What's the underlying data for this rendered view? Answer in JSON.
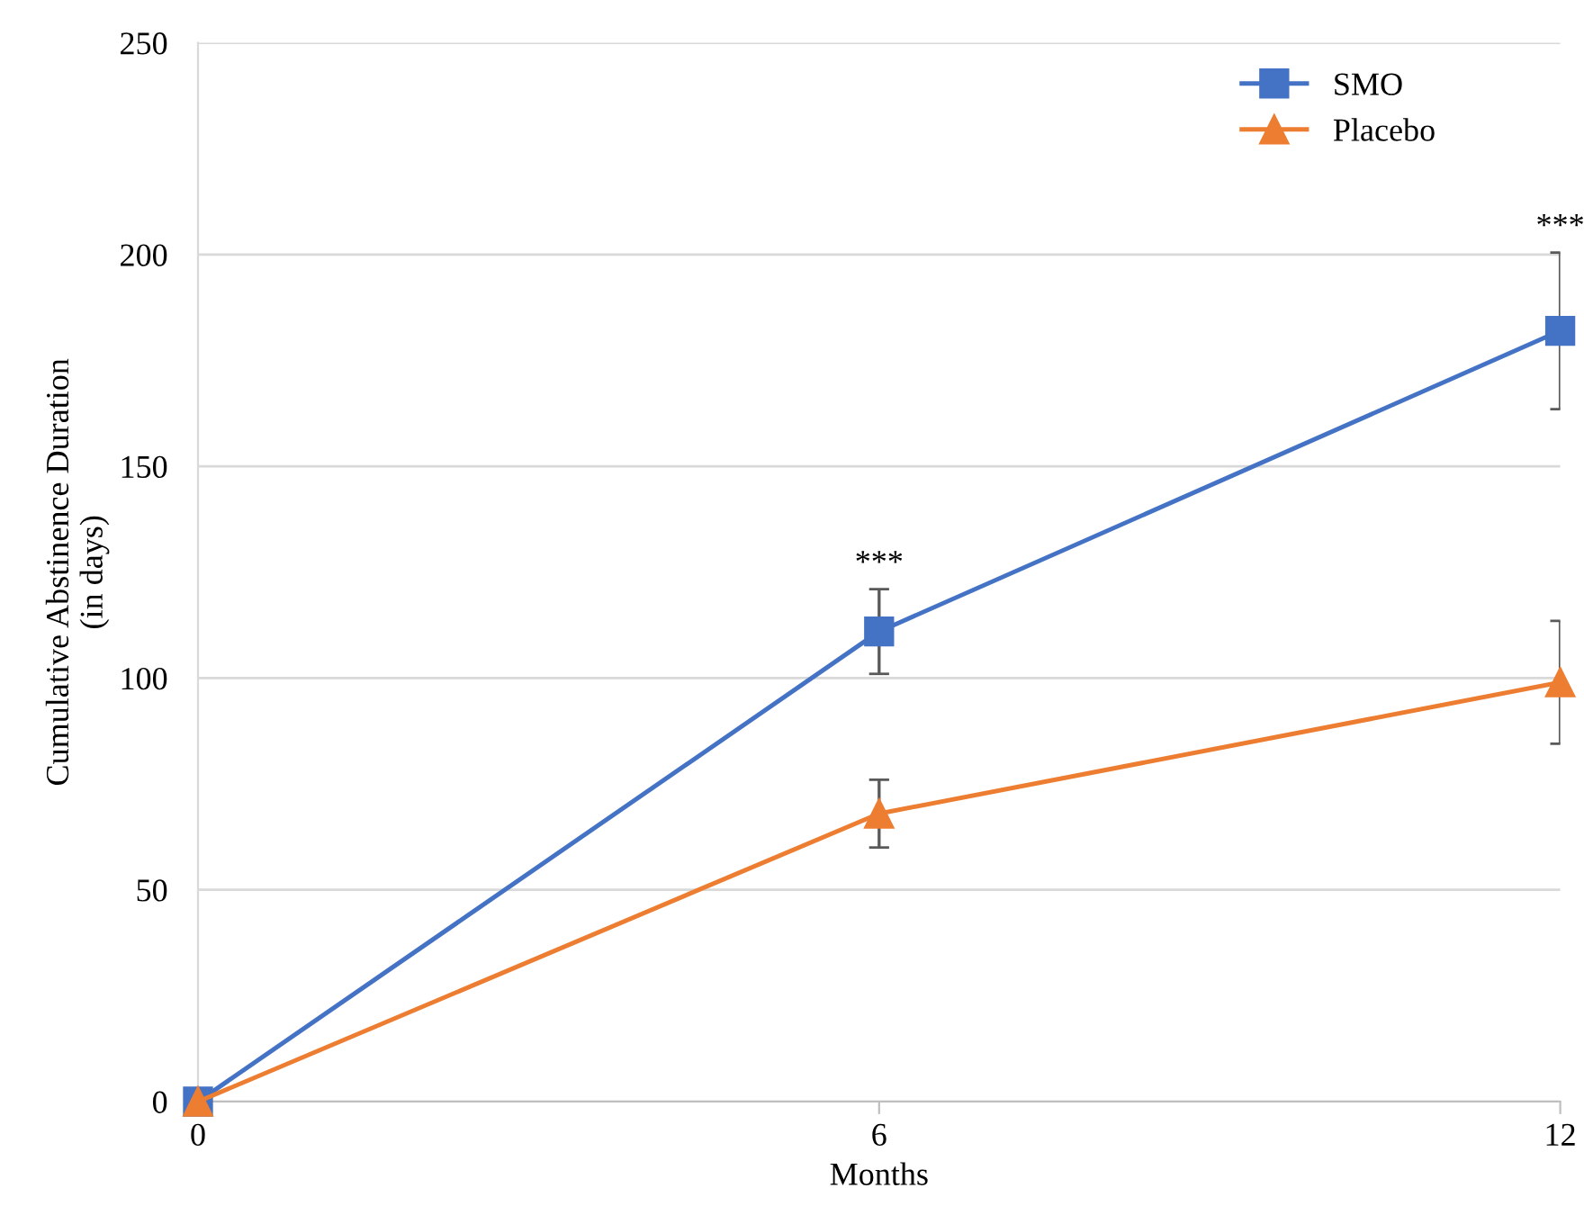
{
  "chart_data": {
    "type": "line",
    "xlabel": "Months",
    "ylabel": "Cumulative Abstinence Duration\n(in days)",
    "x": [
      0,
      6,
      12
    ],
    "series": [
      {
        "name": "SMO",
        "color": "#4472c4",
        "marker": "square",
        "values": [
          0,
          111,
          182
        ],
        "errors": [
          null,
          10,
          18.5
        ]
      },
      {
        "name": "Placebo",
        "color": "#ed7d31",
        "marker": "triangle",
        "values": [
          0,
          68,
          99
        ],
        "errors": [
          null,
          8,
          14.5
        ]
      }
    ],
    "xlim": [
      0,
      12
    ],
    "xticks": [
      0,
      6,
      12
    ],
    "ylim": [
      0,
      250
    ],
    "yticks": [
      0,
      50,
      100,
      150,
      200,
      250
    ],
    "grid": "y",
    "legend": "top right",
    "annotations": [
      {
        "text": "***",
        "x": 6,
        "y": 121
      },
      {
        "text": "***",
        "x": 12,
        "y": 200.5
      }
    ]
  }
}
